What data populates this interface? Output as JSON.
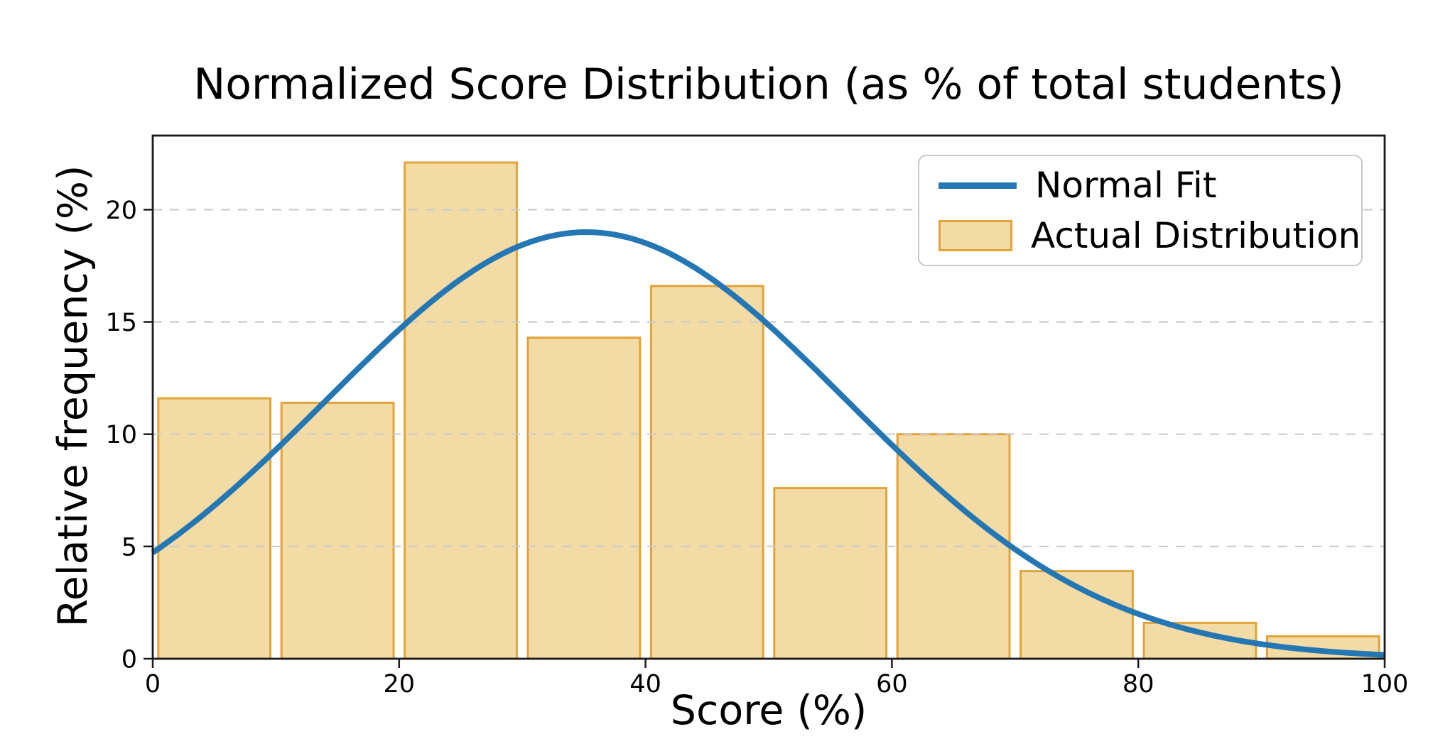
{
  "chart_data": {
    "type": "bar",
    "title": "Normalized Score Distribution (as % of total students)",
    "xlabel": "Score (%)",
    "ylabel": "Relative frequency (%)",
    "xlim": [
      0,
      100
    ],
    "ylim": [
      0,
      23.3
    ],
    "x_ticks": [
      0,
      20,
      40,
      60,
      80,
      100
    ],
    "y_ticks": [
      0,
      5,
      10,
      15,
      20
    ],
    "grid": {
      "axis": "y",
      "style": "dashed",
      "color": "#cbcbcb"
    },
    "legend": {
      "position": "upper right",
      "border_color": "#c8c8c8",
      "background": "#ffffff"
    },
    "categories": [
      "0-10",
      "10-20",
      "20-30",
      "30-40",
      "40-50",
      "50-60",
      "60-70",
      "70-80",
      "80-90",
      "90-100"
    ],
    "bin_edges": [
      0,
      10,
      20,
      30,
      40,
      50,
      60,
      70,
      80,
      90,
      100
    ],
    "bar_relative_width": 0.91,
    "series": [
      {
        "name": "Normal Fit",
        "type": "line",
        "color": "#2577b4",
        "line_width": 8,
        "gaussian_fit": {
          "amplitude": 19.0,
          "mean": 35.2,
          "sigma": 21.1
        },
        "sampled_points": {
          "x": [
            0,
            10,
            20,
            30,
            40,
            50,
            60,
            70,
            80,
            90,
            100
          ],
          "y": [
            4.7,
            9.4,
            14.5,
            18.4,
            18.9,
            14.8,
            8.9,
            4.1,
            2.0,
            0.6,
            0.2
          ]
        }
      },
      {
        "name": "Actual Distribution",
        "type": "bar",
        "fill_color": "#f2dba5",
        "edge_color": "#e1a33b",
        "values": [
          11.6,
          11.4,
          22.1,
          14.3,
          16.6,
          7.6,
          10.0,
          3.9,
          1.6,
          1.0
        ]
      }
    ],
    "axis_color": "#1a1a1a"
  }
}
